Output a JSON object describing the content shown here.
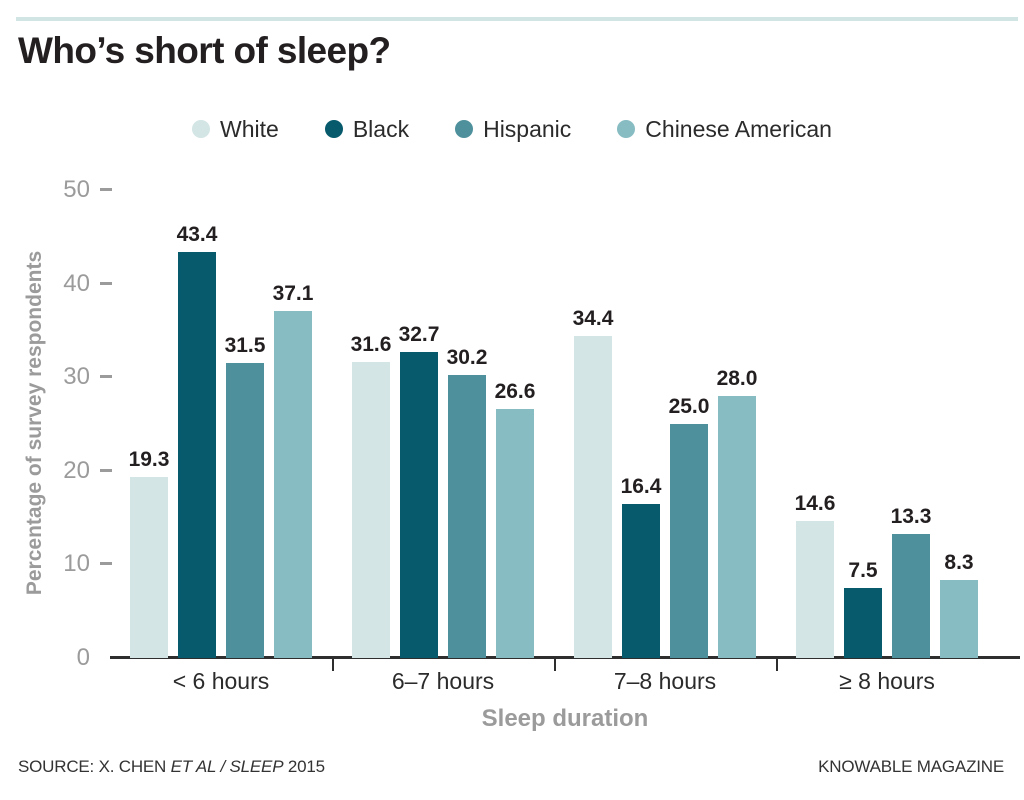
{
  "header": {
    "title": "Who’s short of sleep?"
  },
  "chart_data": {
    "type": "bar",
    "title": "Who’s short of sleep?",
    "categories": [
      "< 6 hours",
      "6–7 hours",
      "7–8 hours",
      "≥ 8 hours"
    ],
    "series": [
      {
        "name": "White",
        "color": "#d3e5e5",
        "values": [
          19.3,
          31.6,
          34.4,
          14.6
        ]
      },
      {
        "name": "Black",
        "color": "#065a6c",
        "values": [
          43.4,
          32.7,
          16.4,
          7.5
        ]
      },
      {
        "name": "Hispanic",
        "color": "#4e919c",
        "values": [
          31.5,
          30.2,
          25.0,
          13.3
        ]
      },
      {
        "name": "Chinese American",
        "color": "#87bcc2",
        "values": [
          37.1,
          26.6,
          28.0,
          8.3
        ]
      }
    ],
    "xlabel": "Sleep duration",
    "ylabel": "Percentage of survey respondents",
    "ylim": [
      0,
      50
    ],
    "yticks": [
      0,
      10,
      20,
      30,
      40,
      50
    ],
    "value_label_decimals": 1,
    "legend_position": "top",
    "grid": false,
    "accent_rule_color": "#d2e5e5",
    "axis_color": "#2e2e2e",
    "muted_text_color": "#9b9b9b",
    "label_text_color": "#231f20"
  },
  "footer": {
    "source_prefix": "SOURCE: X. CHEN ",
    "source_italic": "ET AL / SLEEP",
    "source_suffix": " 2015",
    "credit": "KNOWABLE MAGAZINE"
  }
}
